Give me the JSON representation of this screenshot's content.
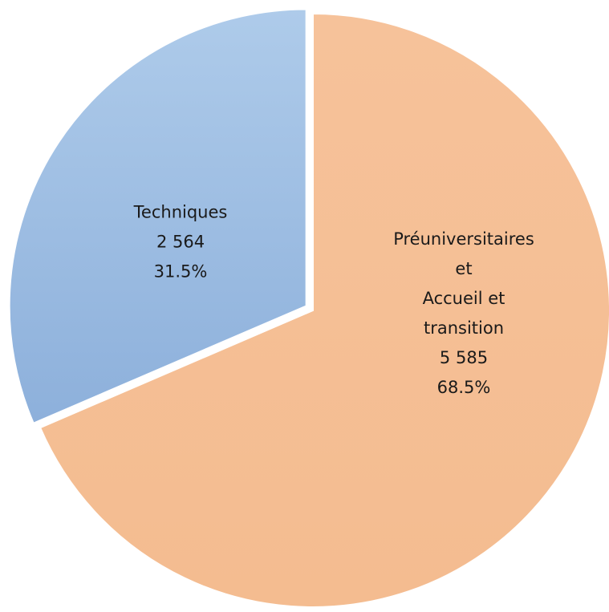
{
  "chart_data": {
    "type": "pie",
    "categories": [
      "Préuniversitaires\net\nAccueil et\ntransition",
      "Techniques"
    ],
    "values": [
      5585,
      2564
    ],
    "value_labels": [
      "5 585",
      "2 564"
    ],
    "percentages": [
      68.5,
      31.5
    ],
    "percent_labels": [
      "68.5%",
      "31.5%"
    ],
    "colors": [
      "#f5bf95",
      "#a3c1e6"
    ],
    "exploded": [
      false,
      true
    ]
  }
}
